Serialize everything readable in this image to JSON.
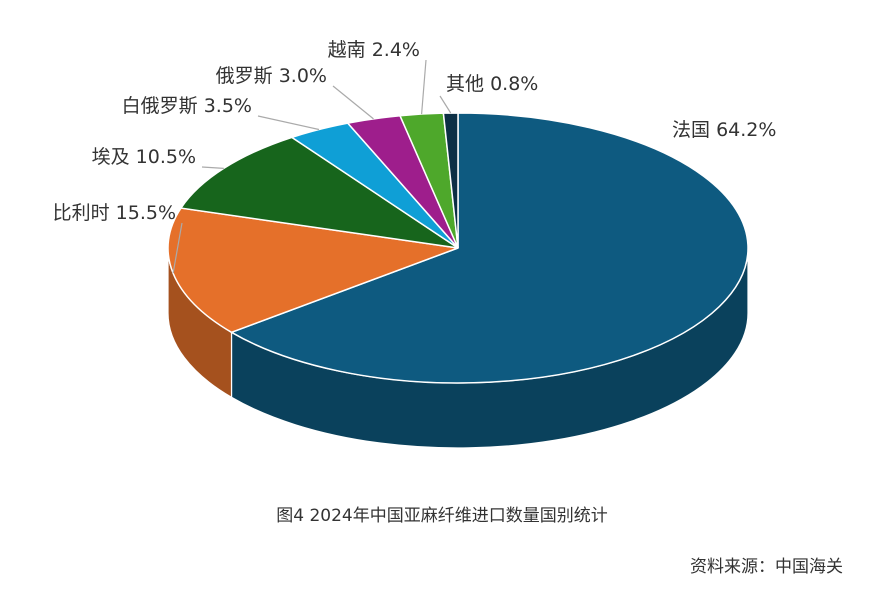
{
  "chart_data": {
    "type": "pie3d",
    "caption": "图4  2024年中国亚麻纤维进口数量国别统计",
    "source": "资料来源：中国海关",
    "categories": [
      "法国",
      "比利时",
      "埃及",
      "白俄罗斯",
      "俄罗斯",
      "越南",
      "其他"
    ],
    "values": [
      64.2,
      15.5,
      10.5,
      3.5,
      3.0,
      2.4,
      0.8
    ],
    "value_labels": [
      "64.2%",
      "15.5%",
      "10.5%",
      "3.5%",
      "3.0%",
      "2.4%",
      "0.8%"
    ],
    "colors": [
      "#0e5a80",
      "#e5702a",
      "#17651c",
      "#0f9fd6",
      "#9e1e8c",
      "#4ea82b",
      "#0c2f45"
    ]
  }
}
